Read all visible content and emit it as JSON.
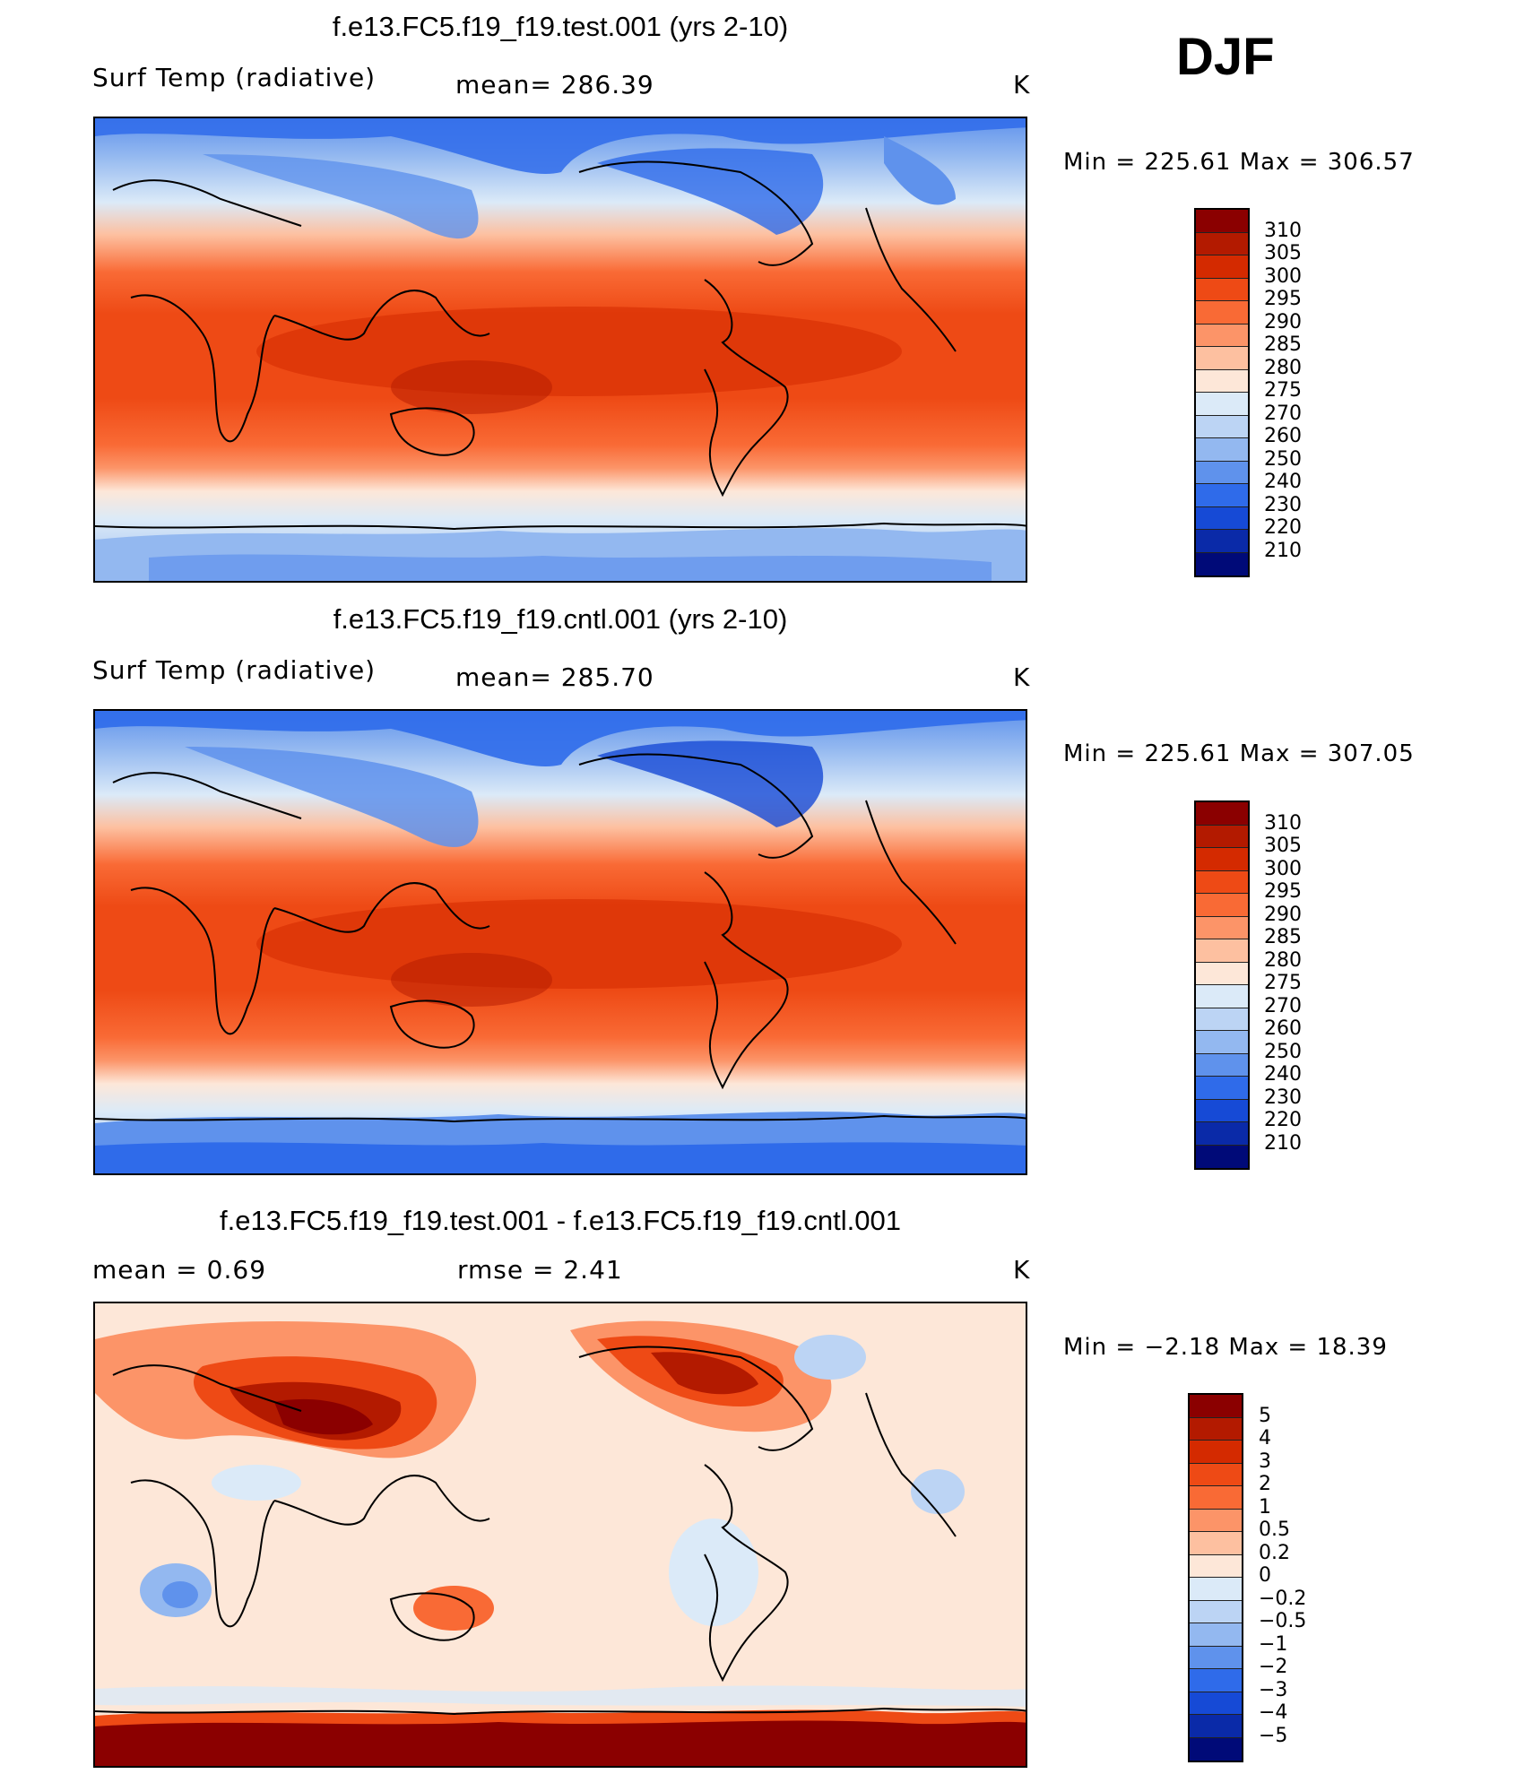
{
  "season": "DJF",
  "units": "K",
  "panels": [
    {
      "title": "f.e13.FC5.f19_f19.test.001 (yrs 2-10)",
      "variable": "Surf Temp (radiative)",
      "stat": "mean=  286.39",
      "units": "K",
      "minmax": "Min  =  225.61  Max  =  306.57"
    },
    {
      "title": "f.e13.FC5.f19_f19.cntl.001 (yrs 2-10)",
      "variable": "Surf Temp (radiative)",
      "stat": "mean=  285.70",
      "units": "K",
      "minmax": "Min  =  225.61  Max  =  307.05"
    },
    {
      "title": "f.e13.FC5.f19_f19.test.001 - f.e13.FC5.f19_f19.cntl.001",
      "stat_mean": "mean  =      0.69",
      "stat_rmse": "rmse  =      2.41",
      "units": "K",
      "minmax": "Min  =     −2.18  Max  =     18.39"
    }
  ],
  "colorbar_abs": {
    "labels": [
      "310",
      "305",
      "300",
      "295",
      "290",
      "285",
      "280",
      "275",
      "270",
      "260",
      "250",
      "240",
      "230",
      "220",
      "210"
    ],
    "colors": [
      "#8b0000",
      "#b31a00",
      "#d42a00",
      "#ee4a15",
      "#f96a35",
      "#fc9468",
      "#fdc0a0",
      "#fde7d8",
      "#dbeaf8",
      "#bcd4f4",
      "#93b8f0",
      "#5f92ec",
      "#2f6bea",
      "#164ad6",
      "#0a2aa8",
      "#000a78"
    ]
  },
  "colorbar_diff": {
    "labels": [
      "5",
      "4",
      "3",
      "2",
      "1",
      "0.5",
      "0.2",
      "0",
      "−0.2",
      "−0.5",
      "−1",
      "−2",
      "−3",
      "−4",
      "−5"
    ],
    "colors": [
      "#8b0000",
      "#b31a00",
      "#d42a00",
      "#ee4a15",
      "#f96a35",
      "#fc9468",
      "#fdc0a0",
      "#fde7d8",
      "#dbeaf8",
      "#bcd4f4",
      "#93b8f0",
      "#5f92ec",
      "#2f6bea",
      "#164ad6",
      "#0a2aa8",
      "#000a78"
    ]
  }
}
